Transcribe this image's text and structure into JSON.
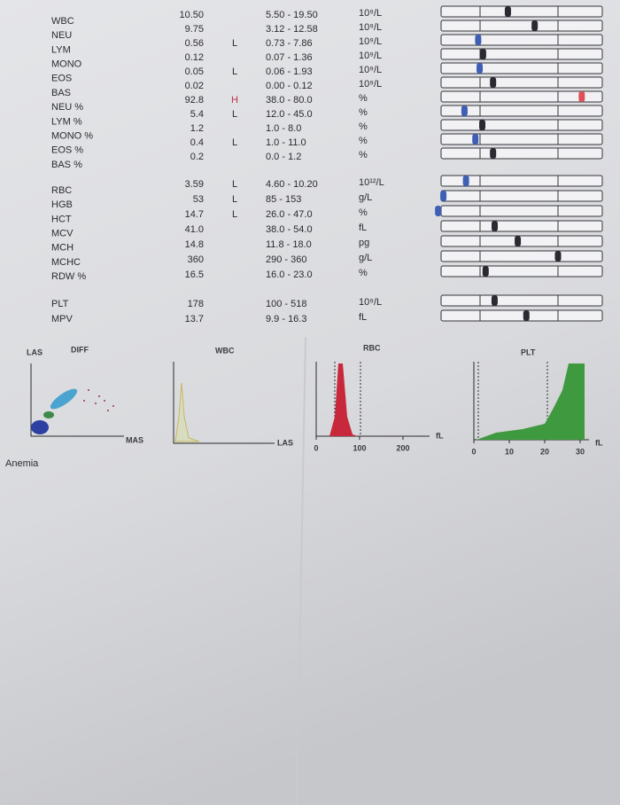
{
  "report": {
    "groups": [
      {
        "rows": [
          {
            "name": "WBC",
            "value": "10.50",
            "range": "5.50 - 19.50",
            "unit": "10⁹/L"
          },
          {
            "name": "NEU",
            "value": "9.75",
            "range": "3.12 - 12.58",
            "unit": "10⁹/L"
          },
          {
            "name": "LYM",
            "value": "0.56",
            "flag": "L",
            "range": "0.73 - 7.86",
            "unit": "10⁹/L"
          },
          {
            "name": "MONO",
            "value": "0.12",
            "range": "0.07 - 1.36",
            "unit": "10⁹/L"
          },
          {
            "name": "EOS",
            "value": "0.05",
            "flag": "L",
            "range": "0.06 - 1.93",
            "unit": "10⁹/L"
          },
          {
            "name": "BAS",
            "value": "0.02",
            "range": "0.00 - 0.12",
            "unit": "10⁹/L"
          },
          {
            "name": "NEU %",
            "value": "92.8",
            "flag": "H",
            "range": "38.0 - 80.0",
            "unit": "%"
          },
          {
            "name": "LYM %",
            "value": "5.4",
            "flag": "L",
            "range": "12.0 - 45.0",
            "unit": "%"
          },
          {
            "name": "MONO %",
            "value": "1.2",
            "range": "1.0 - 8.0",
            "unit": "%"
          },
          {
            "name": "EOS %",
            "value": "0.4",
            "flag": "L",
            "range": "1.0 - 11.0",
            "unit": "%"
          },
          {
            "name": "BAS %",
            "value": "0.2",
            "range": "0.0 - 1.2",
            "unit": "%"
          }
        ]
      },
      {
        "rows": [
          {
            "name": "RBC",
            "value": "3.59",
            "flag": "L",
            "range": "4.60 - 10.20",
            "unit": "10¹²/L"
          },
          {
            "name": "HGB",
            "value": "53",
            "flag": "L",
            "range": "85 - 153",
            "unit": "g/L"
          },
          {
            "name": "HCT",
            "value": "14.7",
            "flag": "L",
            "range": "26.0 - 47.0",
            "unit": "%"
          },
          {
            "name": "MCV",
            "value": "41.0",
            "range": "38.0 - 54.0",
            "unit": "fL"
          },
          {
            "name": "MCH",
            "value": "14.8",
            "range": "11.8 - 18.0",
            "unit": "pg"
          },
          {
            "name": "MCHC",
            "value": "360",
            "range": "290 - 360",
            "unit": "g/L"
          },
          {
            "name": "RDW %",
            "value": "16.5",
            "range": "16.0 - 23.0",
            "unit": "%"
          }
        ]
      },
      {
        "rows": [
          {
            "name": "PLT",
            "value": "178",
            "range": "100 - 518",
            "unit": "10⁹/L"
          },
          {
            "name": "MPV",
            "value": "13.7",
            "range": "9.9 - 16.3",
            "unit": "fL"
          }
        ]
      }
    ],
    "graphs": {
      "diff": {
        "title": "DIFF",
        "y_label": "LAS",
        "x_label": "MAS"
      },
      "wbc": {
        "title": "WBC",
        "x_label": "LAS"
      },
      "rbc": {
        "title": "RBC",
        "x_ticks": [
          0,
          100,
          200
        ],
        "x_unit": "fL"
      },
      "plt": {
        "title": "PLT",
        "x_ticks": [
          0,
          10,
          20,
          30
        ],
        "x_unit": "fL"
      }
    },
    "note": "Anemia"
  }
}
